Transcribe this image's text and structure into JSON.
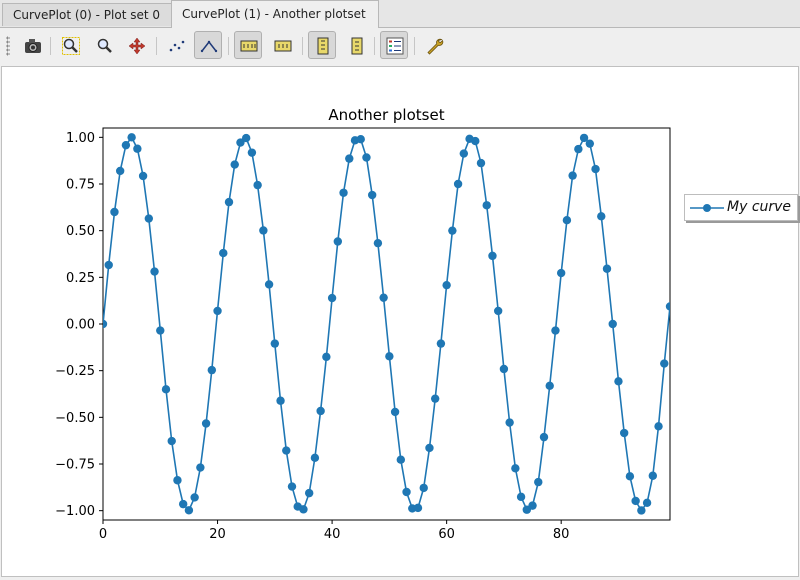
{
  "tabs": [
    {
      "label": "CurvePlot (0) - Plot set 0",
      "active": false
    },
    {
      "label": "CurvePlot (1) - Another plotset",
      "active": true
    }
  ],
  "toolbar": {
    "buttons": [
      {
        "icon": "camera-icon",
        "active": false
      },
      {
        "icon": "zoom-in-icon",
        "active": false
      },
      {
        "icon": "zoom-out-icon",
        "active": false
      },
      {
        "icon": "pan-arrows-icon",
        "active": false
      },
      {
        "icon": "points-style-icon",
        "active": false
      },
      {
        "icon": "lines-style-icon",
        "active": true
      },
      {
        "icon": "x-log-scale-icon",
        "active": true
      },
      {
        "icon": "y-log-scale-icon",
        "active": false
      },
      {
        "icon": "x-grid-icon",
        "active": true
      },
      {
        "icon": "y-grid-icon",
        "active": false
      },
      {
        "icon": "legend-icon",
        "active": true
      },
      {
        "icon": "wrench-settings-icon",
        "active": false
      }
    ]
  },
  "chart_data": {
    "type": "line",
    "title": "Another plotset",
    "xlabel": "",
    "ylabel": "",
    "xlim": [
      0,
      99
    ],
    "ylim": [
      -1.05,
      1.05
    ],
    "xticks": [
      "0",
      "20",
      "40",
      "60",
      "80"
    ],
    "yticks": [
      "1.00",
      "0.75",
      "0.50",
      "0.25",
      "0.00",
      "−0.25",
      "−0.50",
      "−0.75",
      "−1.00"
    ],
    "grid": false,
    "legend_position": "outside-top-right",
    "series": [
      {
        "name": "My curve",
        "color": "#1f77b4",
        "marker": "circle",
        "x": [
          0,
          1,
          2,
          3,
          4,
          5,
          6,
          7,
          8,
          9,
          10,
          11,
          12,
          13,
          14,
          15,
          16,
          17,
          18,
          19,
          20,
          21,
          22,
          23,
          24,
          25,
          26,
          27,
          28,
          29,
          30,
          31,
          32,
          33,
          34,
          35,
          36,
          37,
          38,
          39,
          40,
          41,
          42,
          43,
          44,
          45,
          46,
          47,
          48,
          49,
          50,
          51,
          52,
          53,
          54,
          55,
          56,
          57,
          58,
          59,
          60,
          61,
          62,
          63,
          64,
          65,
          66,
          67,
          68,
          69,
          70,
          71,
          72,
          73,
          74,
          75,
          76,
          77,
          78,
          79,
          80,
          81,
          82,
          83,
          84,
          85,
          86,
          87,
          88,
          89,
          90,
          91,
          92,
          93,
          94,
          95,
          96,
          97,
          98,
          99
        ],
        "y": [
          0.0,
          0.316,
          0.6,
          0.82,
          0.958,
          1.0,
          0.939,
          0.793,
          0.565,
          0.281,
          -0.035,
          -0.35,
          -0.627,
          -0.837,
          -0.965,
          -0.998,
          -0.929,
          -0.769,
          -0.533,
          -0.247,
          0.07,
          0.38,
          0.653,
          0.854,
          0.972,
          0.996,
          0.918,
          0.744,
          0.501,
          0.212,
          -0.105,
          -0.411,
          -0.678,
          -0.871,
          -0.978,
          -0.993,
          -0.906,
          -0.717,
          -0.466,
          -0.176,
          0.139,
          0.442,
          0.703,
          0.886,
          0.984,
          0.99,
          0.892,
          0.691,
          0.433,
          0.141,
          -0.173,
          -0.471,
          -0.727,
          -0.9,
          -0.988,
          -0.985,
          -0.878,
          -0.664,
          -0.4,
          -0.105,
          0.208,
          0.5,
          0.75,
          0.913,
          0.992,
          0.98,
          0.862,
          0.636,
          0.365,
          0.07,
          -0.241,
          -0.528,
          -0.773,
          -0.926,
          -0.995,
          -0.973,
          -0.847,
          -0.606,
          -0.331,
          -0.035,
          0.273,
          0.556,
          0.795,
          0.937,
          0.997,
          0.966,
          0.83,
          0.577,
          0.296,
          0.0,
          -0.307,
          -0.584,
          -0.816,
          -0.948,
          -0.999,
          -0.958,
          -0.813,
          -0.548,
          -0.212,
          0.094
        ]
      }
    ]
  }
}
